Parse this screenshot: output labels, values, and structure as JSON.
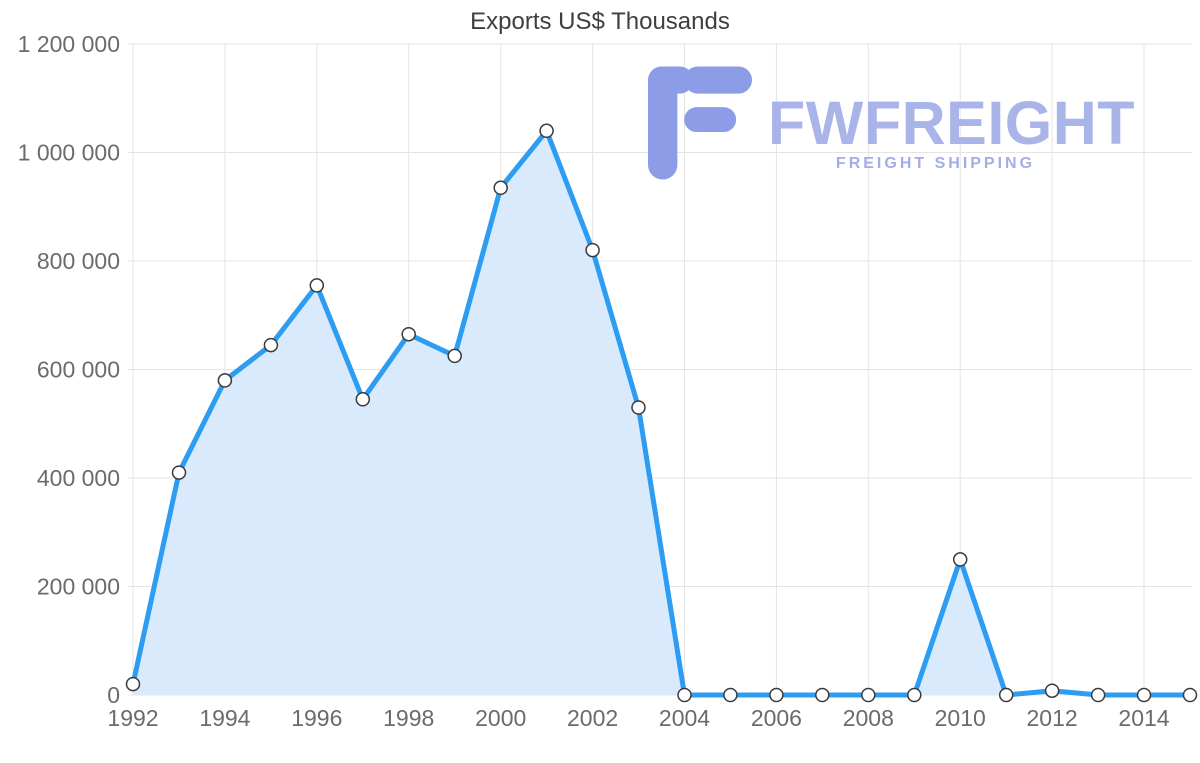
{
  "chart_data": {
    "type": "area",
    "title": "Exports US$ Thousands",
    "x": [
      1992,
      1993,
      1994,
      1995,
      1996,
      1997,
      1998,
      1999,
      2000,
      2001,
      2002,
      2003,
      2004,
      2005,
      2006,
      2007,
      2008,
      2009,
      2010,
      2011,
      2012,
      2013,
      2014,
      2015
    ],
    "values": [
      20000,
      410000,
      580000,
      645000,
      755000,
      545000,
      665000,
      625000,
      935000,
      1040000,
      820000,
      530000,
      0,
      0,
      0,
      0,
      0,
      0,
      250000,
      0,
      8000,
      0,
      0,
      0
    ],
    "series_name": "Exports US$ Thousands",
    "xlabel": "",
    "ylabel": "",
    "ylim": [
      0,
      1200000
    ],
    "y_ticks": [
      0,
      200000,
      400000,
      600000,
      800000,
      1000000,
      1200000
    ],
    "y_tick_labels": [
      "0",
      "200 000",
      "400 000",
      "600 000",
      "800 000",
      "1 000 000",
      "1 200 000"
    ],
    "x_ticks": [
      1992,
      1994,
      1996,
      1998,
      2000,
      2002,
      2004,
      2006,
      2008,
      2010,
      2012,
      2014
    ],
    "x_tick_labels": [
      "1992",
      "1994",
      "1996",
      "1998",
      "2000",
      "2002",
      "2004",
      "2006",
      "2008",
      "2010",
      "2012",
      "2014"
    ],
    "grid": true,
    "legend": false,
    "colors": {
      "line": "#2d9cf3",
      "fill": "#d8eafc",
      "grid": "#e4e4e4",
      "marker_fill": "#ffffff",
      "marker_stroke": "#3a3a3a",
      "tick_label": "#6b6b6b",
      "title": "#3f3f3f"
    }
  },
  "watermark": {
    "brand": "FWFREIGHT",
    "tagline": "FREIGHT SHIPPING",
    "brand_color": "#a9b4e9",
    "icon_color": "#8d9ce7"
  }
}
